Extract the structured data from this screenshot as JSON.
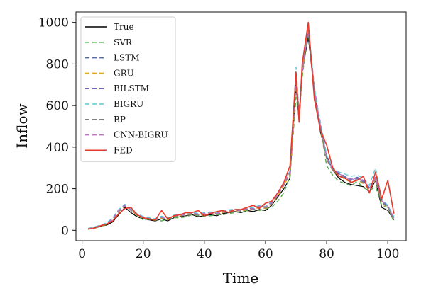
{
  "chart_data": {
    "type": "line",
    "title": "",
    "xlabel": "Time",
    "ylabel": "Inflow",
    "xlim": [
      -2,
      106
    ],
    "ylim": [
      -50,
      1050
    ],
    "xticks": [
      0,
      20,
      40,
      60,
      80,
      100
    ],
    "yticks": [
      0,
      200,
      400,
      600,
      800,
      1000
    ],
    "grid": false,
    "legend_position": "top-left",
    "x": [
      2,
      4,
      6,
      8,
      10,
      12,
      14,
      16,
      18,
      20,
      22,
      24,
      26,
      28,
      30,
      32,
      34,
      36,
      38,
      40,
      42,
      44,
      46,
      48,
      50,
      52,
      54,
      56,
      58,
      60,
      62,
      64,
      66,
      68,
      70,
      71,
      72,
      74,
      76,
      78,
      80,
      82,
      84,
      86,
      88,
      90,
      92,
      94,
      96,
      98,
      100,
      102
    ],
    "series": [
      {
        "name": "True",
        "color": "#000000",
        "dash": "solid",
        "width": 1.2,
        "values": [
          5,
          12,
          20,
          25,
          40,
          75,
          110,
          85,
          65,
          55,
          50,
          45,
          55,
          45,
          60,
          65,
          70,
          75,
          65,
          70,
          75,
          70,
          80,
          85,
          90,
          85,
          95,
          90,
          100,
          95,
          120,
          160,
          200,
          250,
          700,
          520,
          760,
          930,
          670,
          470,
          360,
          290,
          250,
          230,
          220,
          215,
          210,
          185,
          240,
          110,
          95,
          50
        ]
      },
      {
        "name": "SVR",
        "color": "#55aa55",
        "dash": "6,4",
        "width": 1.4,
        "values": [
          8,
          10,
          18,
          28,
          50,
          90,
          115,
          100,
          70,
          50,
          55,
          50,
          45,
          55,
          60,
          60,
          65,
          75,
          70,
          65,
          70,
          75,
          75,
          80,
          85,
          90,
          95,
          100,
          95,
          105,
          110,
          140,
          180,
          260,
          640,
          560,
          730,
          980,
          690,
          490,
          310,
          265,
          235,
          225,
          215,
          235,
          205,
          190,
          210,
          120,
          110,
          40
        ]
      },
      {
        "name": "LSTM",
        "color": "#4a6fa5",
        "dash": "6,4",
        "width": 1.4,
        "values": [
          7,
          14,
          22,
          30,
          55,
          95,
          118,
          95,
          75,
          62,
          55,
          50,
          62,
          52,
          68,
          72,
          70,
          82,
          75,
          78,
          82,
          80,
          88,
          92,
          98,
          95,
          105,
          102,
          115,
          110,
          130,
          170,
          220,
          275,
          720,
          560,
          760,
          950,
          650,
          500,
          345,
          290,
          270,
          255,
          240,
          250,
          235,
          200,
          250,
          140,
          115,
          55
        ]
      },
      {
        "name": "GRU",
        "color": "#e6a817",
        "dash": "6,4",
        "width": 1.4,
        "values": [
          6,
          13,
          20,
          28,
          50,
          90,
          120,
          95,
          72,
          60,
          52,
          48,
          58,
          50,
          65,
          70,
          72,
          80,
          72,
          75,
          80,
          78,
          85,
          90,
          95,
          92,
          100,
          98,
          110,
          105,
          125,
          165,
          215,
          270,
          710,
          545,
          755,
          960,
          660,
          480,
          340,
          285,
          262,
          245,
          232,
          240,
          225,
          195,
          242,
          130,
          108,
          50
        ]
      },
      {
        "name": "BILSTM",
        "color": "#7060c0",
        "dash": "6,4",
        "width": 1.4,
        "values": [
          8,
          15,
          24,
          32,
          58,
          98,
          122,
          100,
          78,
          65,
          58,
          52,
          65,
          55,
          70,
          75,
          75,
          85,
          78,
          82,
          85,
          82,
          92,
          96,
          100,
          98,
          108,
          105,
          118,
          112,
          135,
          175,
          225,
          280,
          730,
          570,
          770,
          970,
          670,
          510,
          350,
          295,
          275,
          260,
          245,
          255,
          240,
          205,
          255,
          145,
          118,
          60
        ]
      },
      {
        "name": "BIGRU",
        "color": "#5bc8d8",
        "dash": "6,4",
        "width": 1.4,
        "values": [
          9,
          16,
          25,
          35,
          60,
          100,
          125,
          102,
          80,
          66,
          60,
          55,
          68,
          58,
          73,
          78,
          76,
          88,
          80,
          85,
          88,
          85,
          95,
          98,
          102,
          100,
          110,
          108,
          120,
          115,
          140,
          180,
          230,
          285,
          785,
          560,
          780,
          990,
          680,
          520,
          360,
          300,
          280,
          270,
          260,
          265,
          250,
          215,
          300,
          150,
          120,
          65
        ]
      },
      {
        "name": "BP",
        "color": "#808080",
        "dash": "6,4",
        "width": 1.4,
        "values": [
          7,
          12,
          21,
          29,
          52,
          92,
          116,
          96,
          74,
          60,
          54,
          49,
          60,
          51,
          66,
          71,
          71,
          80,
          73,
          76,
          80,
          78,
          86,
          90,
          96,
          93,
          102,
          100,
          112,
          107,
          127,
          168,
          218,
          272,
          715,
          550,
          760,
          965,
          662,
          485,
          342,
          288,
          265,
          250,
          236,
          244,
          230,
          198,
          246,
          134,
          110,
          52
        ]
      },
      {
        "name": "CNN-BIGRU",
        "color": "#c070c0",
        "dash": "6,4",
        "width": 1.4,
        "values": [
          8,
          14,
          23,
          31,
          56,
          96,
          120,
          98,
          76,
          63,
          56,
          51,
          63,
          54,
          69,
          74,
          73,
          83,
          76,
          80,
          83,
          81,
          90,
          94,
          99,
          96,
          106,
          103,
          116,
          111,
          132,
          172,
          222,
          278,
          725,
          565,
          765,
          975,
          672,
          505,
          352,
          292,
          272,
          257,
          242,
          252,
          237,
          202,
          252,
          142,
          116,
          58
        ]
      },
      {
        "name": "FED",
        "color": "#e8392a",
        "dash": "solid",
        "width": 1.6,
        "values": [
          6,
          10,
          22,
          30,
          45,
          80,
          105,
          110,
          75,
          60,
          55,
          50,
          95,
          55,
          70,
          75,
          85,
          85,
          95,
          70,
          80,
          90,
          95,
          85,
          100,
          100,
          110,
          120,
          105,
          130,
          140,
          180,
          230,
          310,
          760,
          520,
          800,
          1000,
          630,
          480,
          410,
          300,
          260,
          250,
          230,
          240,
          260,
          180,
          280,
          150,
          240,
          80
        ]
      }
    ]
  }
}
